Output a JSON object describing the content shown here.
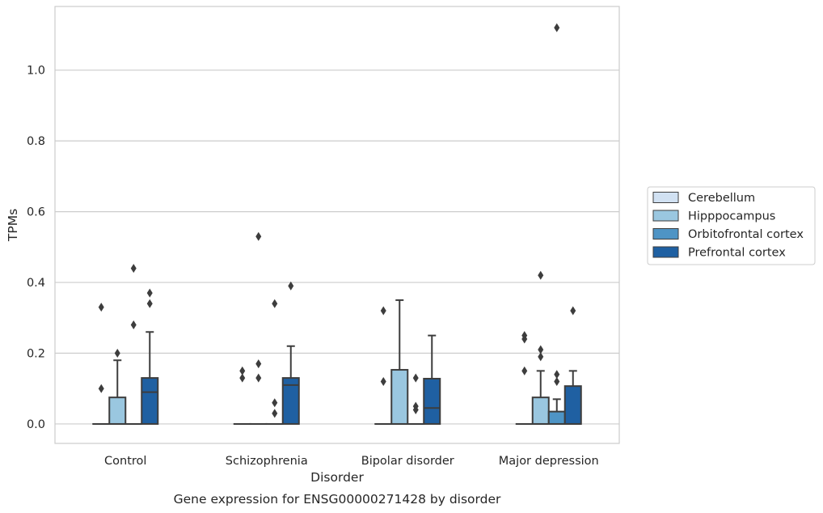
{
  "chart_data": {
    "type": "box",
    "title": "",
    "caption": "Gene expression for ENSG00000271428 by disorder",
    "xlabel": "Disorder",
    "ylabel": "TPMs",
    "ylim": [
      -0.055,
      1.18
    ],
    "yticks": [
      0.0,
      0.2,
      0.4,
      0.6,
      0.8,
      1.0
    ],
    "ytick_labels": [
      "0.0",
      "0.2",
      "0.4",
      "0.6",
      "0.8",
      "1.0"
    ],
    "grid": "horizontal",
    "legend_position": "right",
    "categories": [
      "Control",
      "Schizophrenia",
      "Bipolar disorder",
      "Major depression"
    ],
    "series": [
      {
        "name": "Cerebellum",
        "color": "#d1e1f2",
        "boxes": [
          {
            "category": "Control",
            "whislo": 0,
            "q1": 0,
            "median": 0,
            "q3": 0,
            "whishi": 0,
            "fliers": [
              0.33,
              0.1
            ]
          },
          {
            "category": "Schizophrenia",
            "whislo": 0,
            "q1": 0,
            "median": 0,
            "q3": 0,
            "whishi": 0,
            "fliers": [
              0.15,
              0.13
            ]
          },
          {
            "category": "Bipolar disorder",
            "whislo": 0,
            "q1": 0,
            "median": 0,
            "q3": 0,
            "whishi": 0,
            "fliers": [
              0.32,
              0.12
            ]
          },
          {
            "category": "Major depression",
            "whislo": 0,
            "q1": 0,
            "median": 0,
            "q3": 0,
            "whishi": 0,
            "fliers": [
              0.25,
              0.24,
              0.15
            ]
          }
        ]
      },
      {
        "name": "Hipppocampus",
        "color": "#9ac7e0",
        "boxes": [
          {
            "category": "Control",
            "whislo": 0,
            "q1": 0,
            "median": 0,
            "q3": 0.075,
            "whishi": 0.18,
            "fliers": [
              0.2
            ]
          },
          {
            "category": "Schizophrenia",
            "whislo": 0,
            "q1": 0,
            "median": 0,
            "q3": 0,
            "whishi": 0,
            "fliers": [
              0.53,
              0.17,
              0.13
            ]
          },
          {
            "category": "Bipolar disorder",
            "whislo": 0,
            "q1": 0,
            "median": 0,
            "q3": 0.153,
            "whishi": 0.35,
            "fliers": []
          },
          {
            "category": "Major depression",
            "whislo": 0,
            "q1": 0,
            "median": 0,
            "q3": 0.075,
            "whishi": 0.15,
            "fliers": [
              0.42,
              0.21,
              0.19
            ]
          }
        ]
      },
      {
        "name": "Orbitofrontal cortex",
        "color": "#4e94c5",
        "boxes": [
          {
            "category": "Control",
            "whislo": 0,
            "q1": 0,
            "median": 0,
            "q3": 0,
            "whishi": 0,
            "fliers": [
              0.44,
              0.28
            ]
          },
          {
            "category": "Schizophrenia",
            "whislo": 0,
            "q1": 0,
            "median": 0,
            "q3": 0,
            "whishi": 0,
            "fliers": [
              0.34,
              0.06,
              0.03
            ]
          },
          {
            "category": "Bipolar disorder",
            "whislo": 0,
            "q1": 0,
            "median": 0,
            "q3": 0,
            "whishi": 0,
            "fliers": [
              0.13,
              0.05,
              0.04
            ]
          },
          {
            "category": "Major depression",
            "whislo": 0,
            "q1": 0,
            "median": 0,
            "q3": 0.035,
            "whishi": 0.07,
            "fliers": [
              1.12,
              0.14,
              0.12
            ]
          }
        ]
      },
      {
        "name": "Prefrontal cortex",
        "color": "#1f60a2",
        "boxes": [
          {
            "category": "Control",
            "whislo": 0,
            "q1": 0,
            "median": 0.09,
            "q3": 0.13,
            "whishi": 0.26,
            "fliers": [
              0.37,
              0.34
            ]
          },
          {
            "category": "Schizophrenia",
            "whislo": 0,
            "q1": 0,
            "median": 0.11,
            "q3": 0.13,
            "whishi": 0.22,
            "fliers": [
              0.39
            ]
          },
          {
            "category": "Bipolar disorder",
            "whislo": 0,
            "q1": 0,
            "median": 0.045,
            "q3": 0.128,
            "whishi": 0.25,
            "fliers": []
          },
          {
            "category": "Major depression",
            "whislo": 0,
            "q1": 0,
            "median": 0,
            "q3": 0.107,
            "whishi": 0.15,
            "fliers": [
              0.32
            ]
          }
        ]
      }
    ]
  }
}
